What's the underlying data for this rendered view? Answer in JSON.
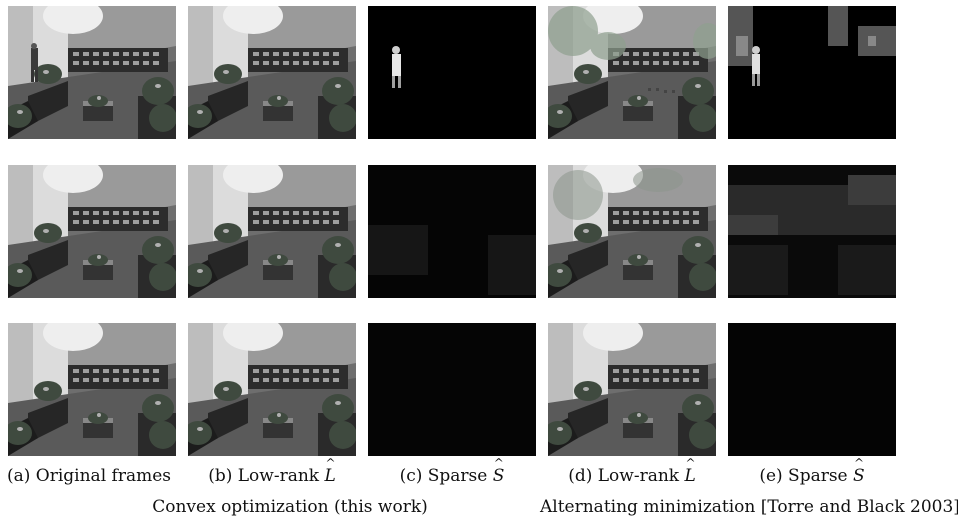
{
  "captions": {
    "a_prefix": "(a) Original frames",
    "b_prefix": "(b) Low-rank",
    "b_symbol": "L",
    "c_prefix": "(c) Sparse",
    "c_symbol": "S",
    "d_prefix": "(d) Low-rank",
    "d_symbol": "L",
    "e_prefix": "(e) Sparse",
    "e_symbol": "S"
  },
  "groups": {
    "convex": "Convex optimization (this work)",
    "alternating": "Alternating minimization [Torre and Black 2003]"
  }
}
